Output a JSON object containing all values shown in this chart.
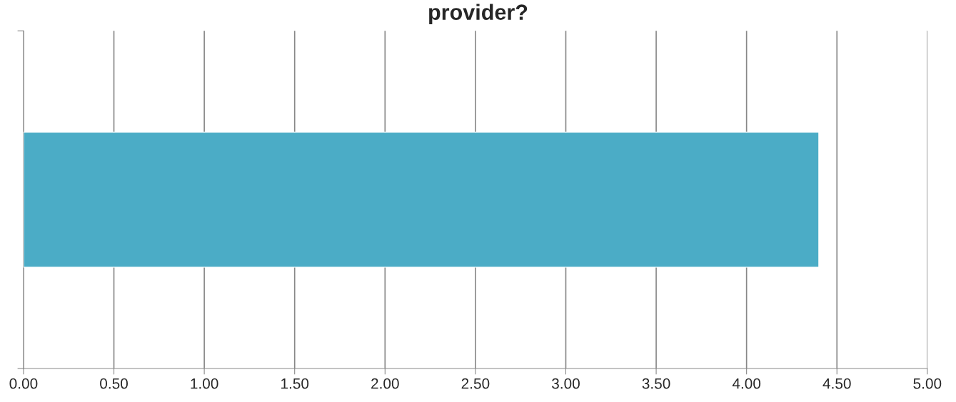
{
  "chart_data": {
    "type": "bar",
    "orientation": "horizontal",
    "title": "provider?",
    "categories": [
      null
    ],
    "series": [
      {
        "color": "#4bacc6",
        "values": [
          4.4
        ]
      }
    ],
    "xlim": [
      0,
      5
    ],
    "xticks": [
      {
        "value": 0,
        "label": "0.00"
      },
      {
        "value": 0.5,
        "label": "0.50"
      },
      {
        "value": 1,
        "label": "1.00"
      },
      {
        "value": 1.5,
        "label": "1.50"
      },
      {
        "value": 2,
        "label": "2.00"
      },
      {
        "value": 2.5,
        "label": "2.50"
      },
      {
        "value": 3,
        "label": "3.00"
      },
      {
        "value": 3.5,
        "label": "3.50"
      },
      {
        "value": 4,
        "label": "4.00"
      },
      {
        "value": 4.5,
        "label": "4.50"
      },
      {
        "value": 5,
        "label": "5.00"
      }
    ],
    "grid": "x"
  }
}
